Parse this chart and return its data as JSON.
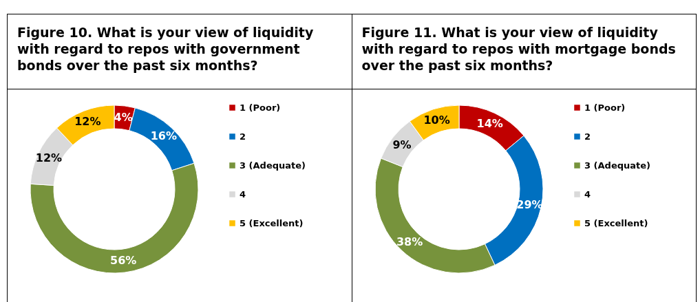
{
  "chart_data": [
    {
      "type": "donut",
      "title": "Figure 10. What is your view of liquidity with regard to repos with government bonds over the past six months?",
      "categories": [
        "1 (Poor)",
        "2",
        "3 (Adequate)",
        "4",
        "5 (Excellent)"
      ],
      "values": [
        4,
        16,
        56,
        12,
        12
      ],
      "colors": [
        "#c00000",
        "#0070c0",
        "#77933c",
        "#d9d9d9",
        "#ffc000"
      ],
      "value_labels": [
        "4%",
        "16%",
        "56%",
        "12%",
        "12%"
      ],
      "legend": "right"
    },
    {
      "type": "donut",
      "title": "Figure 11. What is your view of liquidity with regard to repos with mortgage bonds over the past six months?",
      "categories": [
        "1 (Poor)",
        "2",
        "3 (Adequate)",
        "4",
        "5 (Excellent)"
      ],
      "values": [
        14,
        29,
        38,
        9,
        10
      ],
      "colors": [
        "#c00000",
        "#0070c0",
        "#77933c",
        "#d9d9d9",
        "#ffc000"
      ],
      "value_labels": [
        "14%",
        "29%",
        "38%",
        "9%",
        "10%"
      ],
      "legend": "right"
    }
  ]
}
